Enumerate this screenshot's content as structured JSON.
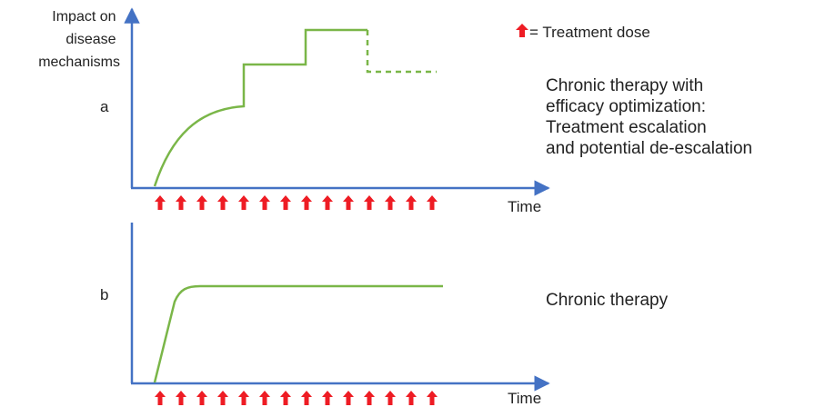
{
  "y_axis_label": [
    "Impact on",
    "disease",
    "mechanisms"
  ],
  "legend": {
    "text": "= Treatment dose",
    "arrow_color": "#ee1c24"
  },
  "panel_a": {
    "letter": "a",
    "time_label": "Time",
    "description": [
      "Chronic therapy with",
      "efficacy optimization:",
      "Treatment escalation",
      "and potential de-escalation"
    ],
    "dose_count": 14
  },
  "panel_b": {
    "letter": "b",
    "time_label": "Time",
    "description": [
      "Chronic therapy"
    ],
    "dose_count": 14
  },
  "colors": {
    "axis": "#4472c4",
    "curve": "#7ab648",
    "dose": "#ee1c24"
  }
}
